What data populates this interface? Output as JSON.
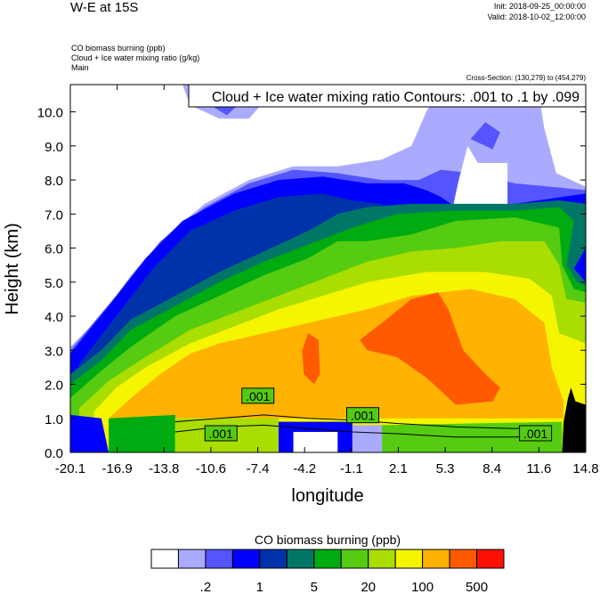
{
  "header": {
    "title": "W-E at 15S",
    "init": "Init: 2018-09-25_00:00:00",
    "valid": "Valid: 2018-10-02_12:00:00",
    "subtitles": [
      "CO biomass burning   (ppb)",
      "Cloud + Ice water mixing ratio    (g/kg)",
      "Main"
    ],
    "cross_section": "Cross-Section: (130,279) to (454,279)"
  },
  "chart_data": {
    "type": "heatmap",
    "title": "W-E at 15S",
    "xlabel": "longitude",
    "ylabel": "Height (km)",
    "xlim": [
      -20.1,
      14.8
    ],
    "ylim": [
      0,
      10.8
    ],
    "xticks": [
      "-20.1",
      "-16.9",
      "-13.8",
      "-10.6",
      "-7.4",
      "-4.2",
      "-1.1",
      "2.1",
      "5.3",
      "8.4",
      "11.6",
      "14.8"
    ],
    "yticks": [
      "0.0",
      "1.0",
      "2.0",
      "3.0",
      "4.0",
      "5.0",
      "6.0",
      "7.0",
      "8.0",
      "9.0",
      "10.0"
    ],
    "contour_legend": "Cloud + Ice water mixing ratio Contours: .001 to .1 by .099",
    "contour_labels": [
      {
        "text": ".001",
        "lon": -7.4,
        "h": 1.65
      },
      {
        "text": ".001",
        "lon": -9.9,
        "h": 0.55
      },
      {
        "text": ".001",
        "lon": -0.3,
        "h": 1.08
      },
      {
        "text": ".001",
        "lon": 11.4,
        "h": 0.55
      }
    ],
    "colorbar": {
      "title": "CO biomass burning  (ppb)",
      "colors": [
        "#ffffff",
        "#aaaaff",
        "#5555ff",
        "#0000ff",
        "#0033aa",
        "#007766",
        "#00aa11",
        "#55cc11",
        "#aadd00",
        "#f5f500",
        "#ffb300",
        "#ff5a00",
        "#ff1000"
      ],
      "labels": [
        {
          "text": ".2",
          "boundary": 2
        },
        {
          "text": "1",
          "boundary": 4
        },
        {
          "text": "5",
          "boundary": 6
        },
        {
          "text": "20",
          "boundary": 8
        },
        {
          "text": "100",
          "boundary": 10
        },
        {
          "text": "500",
          "boundary": 12
        }
      ]
    },
    "fields": [
      {
        "level": 1,
        "pts": [
          [
            -20.1,
            0
          ],
          [
            -20.1,
            3.1
          ],
          [
            -18,
            4.0
          ],
          [
            -16,
            5.2
          ],
          [
            -13.5,
            6.4
          ],
          [
            -11,
            7.3
          ],
          [
            -8,
            8.0
          ],
          [
            -5,
            8.4
          ],
          [
            -2,
            8.4
          ],
          [
            1,
            8.6
          ],
          [
            3,
            9.0
          ],
          [
            4,
            10.0
          ],
          [
            5,
            10.8
          ],
          [
            11.5,
            10.8
          ],
          [
            12,
            9.5
          ],
          [
            12.8,
            8.2
          ],
          [
            14.8,
            7.8
          ],
          [
            14.8,
            0
          ]
        ]
      },
      {
        "level": 1,
        "pts": [
          [
            -12.5,
            10.8
          ],
          [
            -12,
            10.2
          ],
          [
            -10,
            9.8
          ],
          [
            -8,
            9.8
          ],
          [
            -7,
            10.3
          ],
          [
            -6.5,
            10.8
          ]
        ]
      },
      {
        "level": 2,
        "pts": [
          [
            -20.1,
            0
          ],
          [
            -20.1,
            3.0
          ],
          [
            -17,
            4.6
          ],
          [
            -14,
            6.2
          ],
          [
            -11,
            7.2
          ],
          [
            -8,
            7.9
          ],
          [
            -5,
            8.3
          ],
          [
            -2,
            8.2
          ],
          [
            1,
            8.0
          ],
          [
            3.5,
            8.0
          ],
          [
            5,
            8.3
          ],
          [
            7,
            8.2
          ],
          [
            10,
            7.9
          ],
          [
            14.8,
            7.7
          ],
          [
            14.8,
            0
          ]
        ]
      },
      {
        "level": 2,
        "pts": [
          [
            -11.5,
            10.8
          ],
          [
            -11,
            10.3
          ],
          [
            -9.5,
            9.9
          ],
          [
            -8.5,
            10.3
          ],
          [
            -8.3,
            10.8
          ]
        ]
      },
      {
        "level": 2,
        "pts": [
          [
            7,
            9.2
          ],
          [
            8.5,
            8.9
          ],
          [
            9,
            9.4
          ],
          [
            8,
            9.7
          ]
        ]
      },
      {
        "level": 0,
        "pts": [
          [
            5.8,
            7.2
          ],
          [
            6.5,
            7.0
          ],
          [
            7.5,
            7.0
          ],
          [
            9.5,
            7.2
          ],
          [
            9.5,
            8.5
          ],
          [
            7.5,
            8.5
          ],
          [
            6.8,
            9.0
          ],
          [
            6.2,
            8.0
          ]
        ]
      },
      {
        "level": 3,
        "pts": [
          [
            -20.1,
            0
          ],
          [
            -20.1,
            2.9
          ],
          [
            -17.5,
            4.3
          ],
          [
            -15,
            5.7
          ],
          [
            -12.5,
            6.8
          ],
          [
            -9,
            7.6
          ],
          [
            -6,
            8.0
          ],
          [
            -3,
            8.1
          ],
          [
            0,
            7.9
          ],
          [
            2.5,
            7.9
          ],
          [
            4,
            7.7
          ],
          [
            5,
            7.5
          ],
          [
            6,
            7.2
          ],
          [
            10,
            7.3
          ],
          [
            14.8,
            7.6
          ],
          [
            14.8,
            0
          ]
        ]
      },
      {
        "level": 4,
        "pts": [
          [
            -19.5,
            0
          ],
          [
            -19.5,
            2.6
          ],
          [
            -17,
            4.0
          ],
          [
            -14.5,
            5.4
          ],
          [
            -12,
            6.5
          ],
          [
            -9,
            7.1
          ],
          [
            -6,
            7.5
          ],
          [
            -3,
            7.6
          ],
          [
            -1,
            7.4
          ],
          [
            1,
            7.3
          ],
          [
            1,
            0
          ]
        ]
      },
      {
        "level": 5,
        "pts": [
          [
            -20.1,
            0
          ],
          [
            -20.1,
            2.3
          ],
          [
            -18,
            3.0
          ],
          [
            -16,
            3.9
          ],
          [
            -13,
            4.6
          ],
          [
            -10,
            5.3
          ],
          [
            -7,
            5.9
          ],
          [
            -4,
            6.5
          ],
          [
            -2,
            7.0
          ],
          [
            0,
            7.2
          ],
          [
            3,
            7.3
          ],
          [
            6,
            7.3
          ],
          [
            10,
            7.3
          ],
          [
            13,
            7.4
          ],
          [
            14.8,
            7.3
          ],
          [
            14.8,
            6.0
          ],
          [
            14,
            5.4
          ],
          [
            14.8,
            5.0
          ],
          [
            14.8,
            0
          ]
        ]
      },
      {
        "level": 6,
        "pts": [
          [
            -20.1,
            0
          ],
          [
            -20.1,
            2.0
          ],
          [
            -18,
            2.7
          ],
          [
            -16,
            3.6
          ],
          [
            -13,
            4.3
          ],
          [
            -10,
            5.0
          ],
          [
            -7,
            5.6
          ],
          [
            -4,
            6.1
          ],
          [
            -1,
            6.6
          ],
          [
            2,
            7.0
          ],
          [
            6,
            7.1
          ],
          [
            10,
            7.1
          ],
          [
            13,
            7.2
          ],
          [
            14,
            6.8
          ],
          [
            13.5,
            5.5
          ],
          [
            14.2,
            5.0
          ],
          [
            14.8,
            4.9
          ],
          [
            14.8,
            0
          ]
        ]
      },
      {
        "level": 7,
        "pts": [
          [
            -20.1,
            0
          ],
          [
            -20.1,
            1.6
          ],
          [
            -18,
            2.4
          ],
          [
            -16,
            3.1
          ],
          [
            -13,
            4.0
          ],
          [
            -10,
            4.6
          ],
          [
            -7,
            5.2
          ],
          [
            -4,
            5.7
          ],
          [
            -2,
            6.2
          ],
          [
            0,
            6.2
          ],
          [
            3,
            6.4
          ],
          [
            6,
            6.8
          ],
          [
            10,
            6.9
          ],
          [
            13,
            6.6
          ],
          [
            13.2,
            5.5
          ],
          [
            14,
            4.8
          ],
          [
            14.8,
            4.7
          ],
          [
            14.8,
            0
          ]
        ]
      },
      {
        "level": 8,
        "pts": [
          [
            -19.5,
            0
          ],
          [
            -19.5,
            1.3
          ],
          [
            -17.5,
            2.1
          ],
          [
            -15,
            2.8
          ],
          [
            -12,
            3.6
          ],
          [
            -9,
            4.1
          ],
          [
            -6,
            4.6
          ],
          [
            -3,
            5.1
          ],
          [
            0,
            5.6
          ],
          [
            3,
            5.9
          ],
          [
            6,
            6.0
          ],
          [
            9,
            6.2
          ],
          [
            12,
            6.2
          ],
          [
            13,
            5.5
          ],
          [
            13.5,
            4.5
          ],
          [
            14.8,
            4.4
          ],
          [
            14.8,
            0
          ]
        ]
      },
      {
        "level": 9,
        "pts": [
          [
            -18.5,
            0
          ],
          [
            -18.5,
            1.2
          ],
          [
            -17,
            1.9
          ],
          [
            -15,
            2.5
          ],
          [
            -12,
            3.2
          ],
          [
            -9,
            3.7
          ],
          [
            -6,
            4.2
          ],
          [
            -3,
            4.6
          ],
          [
            0,
            5.0
          ],
          [
            4,
            5.3
          ],
          [
            8,
            5.3
          ],
          [
            11,
            5.1
          ],
          [
            12.5,
            4.6
          ],
          [
            13,
            3.5
          ],
          [
            14.8,
            3.2
          ],
          [
            14.8,
            0
          ]
        ]
      },
      {
        "level": 10,
        "pts": [
          [
            -17.5,
            1.0
          ],
          [
            -16,
            1.6
          ],
          [
            -14,
            2.3
          ],
          [
            -12,
            2.9
          ],
          [
            -10,
            3.2
          ],
          [
            -6,
            3.6
          ],
          [
            -3,
            3.9
          ],
          [
            0,
            4.2
          ],
          [
            3,
            4.6
          ],
          [
            7,
            4.8
          ],
          [
            10,
            4.5
          ],
          [
            12,
            3.8
          ],
          [
            12.5,
            2.5
          ],
          [
            13.3,
            1.5
          ],
          [
            13.3,
            1.0
          ]
        ]
      },
      {
        "level": 11,
        "pts": [
          [
            -4.4,
            3.0
          ],
          [
            -4.0,
            3.5
          ],
          [
            -3.3,
            3.3
          ],
          [
            -3.2,
            2.3
          ],
          [
            -3.6,
            2.0
          ],
          [
            -4.3,
            2.3
          ]
        ]
      },
      {
        "level": 11,
        "pts": [
          [
            -0.5,
            3.3
          ],
          [
            1,
            3.8
          ],
          [
            3,
            4.5
          ],
          [
            4.8,
            4.7
          ],
          [
            5.5,
            4.2
          ],
          [
            6.5,
            3.0
          ],
          [
            8,
            2.3
          ],
          [
            9,
            1.9
          ],
          [
            8.5,
            1.5
          ],
          [
            6,
            1.4
          ],
          [
            5,
            1.8
          ],
          [
            4,
            2.2
          ],
          [
            2,
            2.8
          ],
          [
            0,
            3.0
          ]
        ]
      },
      {
        "level": 3,
        "pts": [
          [
            -20.1,
            0
          ],
          [
            -20.1,
            1.1
          ],
          [
            -18,
            1.0
          ],
          [
            -17.5,
            0
          ],
          [
            -17.5,
            0
          ]
        ]
      },
      {
        "level": 6,
        "pts": [
          [
            -17.5,
            0
          ],
          [
            -17.5,
            1.0
          ],
          [
            -13,
            1.1
          ],
          [
            -13,
            0
          ]
        ]
      },
      {
        "level": 8,
        "pts": [
          [
            -13,
            0
          ],
          [
            -13,
            1.0
          ],
          [
            -6,
            1.0
          ],
          [
            -6,
            0
          ]
        ]
      },
      {
        "level": 3,
        "pts": [
          [
            -6,
            0
          ],
          [
            -6,
            0.9
          ],
          [
            -1,
            0.9
          ],
          [
            -1,
            0
          ]
        ]
      },
      {
        "level": 0,
        "pts": [
          [
            -5,
            0
          ],
          [
            -5,
            0.6
          ],
          [
            -2,
            0.6
          ],
          [
            -2,
            0
          ]
        ]
      },
      {
        "level": 1,
        "pts": [
          [
            -1,
            0
          ],
          [
            -1,
            0.8
          ],
          [
            1,
            0.8
          ],
          [
            1,
            0
          ]
        ]
      },
      {
        "level": 7,
        "pts": [
          [
            1,
            0
          ],
          [
            1,
            0.8
          ],
          [
            13.2,
            0.9
          ],
          [
            13.2,
            0
          ]
        ]
      }
    ],
    "terrain": [
      [
        13.2,
        0
      ],
      [
        13.3,
        0.9
      ],
      [
        13.6,
        1.6
      ],
      [
        13.8,
        1.9
      ],
      [
        14.1,
        1.5
      ],
      [
        14.8,
        1.4
      ],
      [
        14.8,
        0
      ]
    ],
    "contours": [
      [
        [
          -13,
          0.9
        ],
        [
          -10,
          1.0
        ],
        [
          -7,
          1.1
        ],
        [
          -4,
          1.0
        ],
        [
          -1,
          0.95
        ],
        [
          2,
          0.85
        ],
        [
          6,
          0.75
        ],
        [
          10,
          0.7
        ],
        [
          12,
          0.75
        ]
      ],
      [
        [
          -13,
          0.6
        ],
        [
          -10,
          0.75
        ],
        [
          -7,
          0.8
        ],
        [
          -4,
          0.7
        ],
        [
          -1,
          0.6
        ],
        [
          2,
          0.55
        ],
        [
          6,
          0.45
        ],
        [
          10,
          0.45
        ],
        [
          12,
          0.5
        ]
      ]
    ]
  }
}
